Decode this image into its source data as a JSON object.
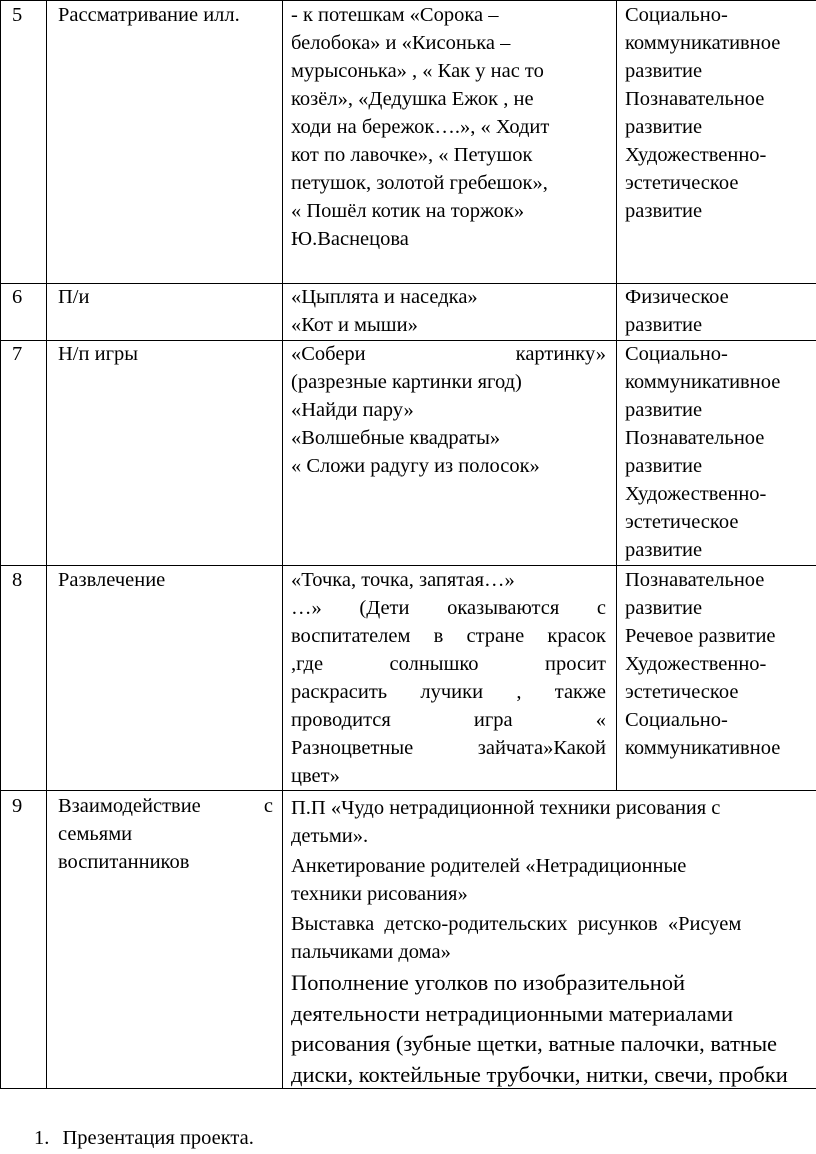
{
  "rows": [
    {
      "num": "5",
      "activity": [
        "Рассматривание илл."
      ],
      "content": [
        "- к потешкам «Сорока –",
        "белобока» и «Кисонька –",
        "мурысонька» , « Как у нас то",
        "козёл», «Дедушка Ежок , не",
        "ходи на бережок….», « Ходит",
        "кот по лавочке», « Петушок",
        "петушок, золотой гребешок»,",
        "« Пошёл котик на торжок»",
        "Ю.Васнецова"
      ],
      "areas": [
        "Социально-",
        "коммуникативное",
        "развитие",
        "Познавательное",
        "развитие",
        "Художественно-",
        "эстетическое",
        "развитие"
      ]
    },
    {
      "num": "6",
      "activity": [
        "П/и"
      ],
      "content": [
        "«Цыплята и наседка»",
        "«Кот и мыши»"
      ],
      "areas": [
        "Физическое",
        "развитие"
      ]
    },
    {
      "num": "7",
      "activity": [
        "Н/п игры"
      ],
      "content": [
        "«Собери картинку»",
        "(разрезные картинки ягод)",
        "«Найди пару»",
        "«Волшебные квадраты»",
        "« Сложи радугу из полосок»"
      ],
      "areas": [
        "Социально-",
        "коммуникативное",
        "развитие",
        "Познавательное",
        "развитие",
        "Художественно-",
        "эстетическое",
        "развитие"
      ]
    },
    {
      "num": "8",
      "activity": [
        "Развлечение"
      ],
      "content": [
        "«Точка, точка, запятая…»",
        "…» (Дети оказываются с",
        "воспитателем в стране красок",
        ",где солнышко просит",
        "раскрасить лучики , также",
        "проводится игра «",
        "Разноцветные зайчата»Какой",
        "цвет»"
      ],
      "areas": [
        "Познавательное",
        "развитие",
        "Речевое развитие",
        "Художественно-",
        "эстетическое",
        "Социально-",
        "коммуникативное"
      ]
    },
    {
      "num": "9",
      "activity": [
        "Взаимодействие с",
        "семьями",
        "воспитанников"
      ],
      "content": [
        "П.П «Чудо нетрадиционной техники   рисования с",
        "детьми».",
        "Анкетирование родителей  «Нетрадиционные",
        "техники рисования»",
        "Выставка  детско-родительских  рисунков  «Рисуем",
        "пальчиками дома»",
        "Пополнение уголков по изобразительной",
        "деятельности нетрадиционными материалами",
        "рисования (зубные щетки, ватные палочки, ватные",
        "диски, коктейльные трубочки, нитки, свечи, пробки"
      ]
    }
  ],
  "footer": {
    "number": "1.",
    "text": "Презентация проекта."
  }
}
